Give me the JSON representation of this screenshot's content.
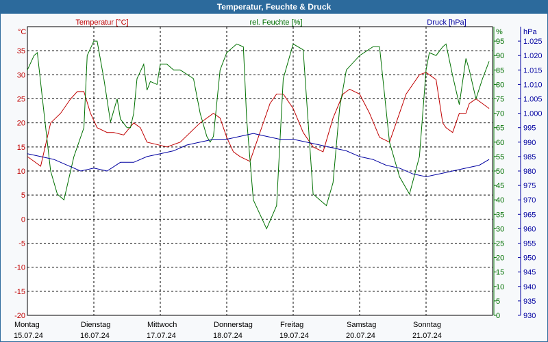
{
  "window": {
    "title": "Temperatur, Feuchte & Druck"
  },
  "axis_labels": {
    "temp_unit": "°C",
    "hum_unit": "%",
    "press_unit": "hPa",
    "temp_series": "Temperatur [°C]",
    "hum_series": "rel. Feuchte [%]",
    "press_series": "Druck [hPa]"
  },
  "colors": {
    "temperature": "#c00000",
    "humidity": "#007000",
    "pressure": "#0000a0",
    "frame": "#2c6a9c"
  },
  "chart_data": {
    "type": "line",
    "title": "Temperatur, Feuchte & Druck",
    "grid": true,
    "x_range": [
      0,
      7
    ],
    "x_ticks": [
      {
        "day": "Montag",
        "date": "15.07.24"
      },
      {
        "day": "Dienstag",
        "date": "16.07.24"
      },
      {
        "day": "Mittwoch",
        "date": "17.07.24"
      },
      {
        "day": "Donnerstag",
        "date": "18.07.24"
      },
      {
        "day": "Freitag",
        "date": "19.07.24"
      },
      {
        "day": "Samstag",
        "date": "20.07.24"
      },
      {
        "day": "Sonntag",
        "date": "21.07.24"
      }
    ],
    "axes": {
      "temperature": {
        "label": "°C",
        "range": [
          -20,
          40
        ],
        "ticks": [
          "35",
          "30",
          "25",
          "20",
          "15",
          "10",
          "5",
          "0",
          "-5",
          "-10",
          "-15",
          "-20"
        ]
      },
      "humidity": {
        "label": "%",
        "range": [
          0,
          100
        ],
        "ticks": [
          "95",
          "90",
          "85",
          "80",
          "75",
          "70",
          "65",
          "60",
          "55",
          "50",
          "45",
          "40",
          "35",
          "30",
          "25",
          "20",
          "15",
          "10",
          "5",
          "0"
        ]
      },
      "pressure": {
        "label": "hPa",
        "range": [
          930,
          1030
        ],
        "ticks": [
          "1.025",
          "1.020",
          "1.015",
          "1.010",
          "1.005",
          "1.000",
          "995",
          "990",
          "985",
          "980",
          "975",
          "970",
          "965",
          "960",
          "955",
          "950",
          "945",
          "940",
          "935",
          "930"
        ]
      }
    },
    "series": [
      {
        "name": "Temperatur [°C]",
        "axis": "temperature",
        "x": [
          0,
          0.1,
          0.2,
          0.35,
          0.5,
          0.65,
          0.75,
          0.85,
          0.95,
          1.05,
          1.2,
          1.3,
          1.45,
          1.6,
          1.7,
          1.8,
          1.95,
          2.1,
          2.3,
          2.45,
          2.6,
          2.8,
          2.9,
          3.0,
          3.1,
          3.2,
          3.35,
          3.5,
          3.65,
          3.75,
          3.85,
          4.0,
          4.15,
          4.3,
          4.45,
          4.6,
          4.75,
          4.85,
          5.0,
          5.15,
          5.3,
          5.45,
          5.6,
          5.7,
          5.8,
          5.9,
          6.0,
          6.05,
          6.15,
          6.25,
          6.3,
          6.4,
          6.5,
          6.6,
          6.65,
          6.75,
          6.85,
          6.95
        ],
        "values": [
          13,
          12,
          11,
          20,
          22,
          25,
          26.5,
          26.5,
          22,
          19,
          18,
          18,
          17.5,
          20,
          19,
          16,
          15.5,
          15,
          16,
          18,
          20,
          22,
          21,
          17,
          14,
          13,
          12,
          18,
          24,
          26,
          26,
          23,
          18,
          15,
          14,
          21,
          26,
          27,
          26,
          22,
          17,
          16,
          22,
          26,
          28,
          30,
          30.5,
          30,
          29,
          20,
          19,
          18,
          22,
          22,
          24,
          25,
          24,
          23
        ]
      },
      {
        "name": "rel. Feuchte [%]",
        "axis": "humidity",
        "x": [
          0,
          0.1,
          0.15,
          0.25,
          0.35,
          0.45,
          0.55,
          0.6,
          0.7,
          0.85,
          0.9,
          1.0,
          1.05,
          1.15,
          1.25,
          1.35,
          1.4,
          1.5,
          1.55,
          1.6,
          1.65,
          1.75,
          1.8,
          1.85,
          1.95,
          2.0,
          2.1,
          2.2,
          2.3,
          2.5,
          2.6,
          2.7,
          2.75,
          2.8,
          2.9,
          3.0,
          3.15,
          3.25,
          3.3,
          3.4,
          3.6,
          3.75,
          3.85,
          4.0,
          4.15,
          4.3,
          4.5,
          4.6,
          4.7,
          4.8,
          5.0,
          5.2,
          5.3,
          5.45,
          5.6,
          5.75,
          5.9,
          6.0,
          6.05,
          6.15,
          6.25,
          6.3,
          6.4,
          6.5,
          6.6,
          6.65,
          6.75,
          6.85,
          6.95
        ],
        "values": [
          85,
          90,
          91,
          70,
          50,
          42,
          40,
          45,
          55,
          65,
          90,
          95,
          95,
          82,
          67,
          75,
          68,
          65,
          65,
          70,
          82,
          87,
          78,
          81,
          80,
          87,
          87,
          85,
          85,
          82,
          70,
          62,
          60,
          62,
          85,
          91,
          94,
          93,
          68,
          40,
          30,
          38,
          82,
          94,
          92,
          42,
          38,
          46,
          72,
          85,
          90,
          93,
          93,
          60,
          48,
          42,
          55,
          85,
          91,
          90,
          93,
          94,
          83,
          73,
          89,
          85,
          75,
          82,
          88
        ]
      },
      {
        "name": "Druck [hPa]",
        "axis": "pressure",
        "x": [
          0,
          0.2,
          0.4,
          0.6,
          0.8,
          1.0,
          1.2,
          1.4,
          1.5,
          1.6,
          1.8,
          2.0,
          2.2,
          2.4,
          2.6,
          2.8,
          3.0,
          3.2,
          3.4,
          3.6,
          3.8,
          4.0,
          4.2,
          4.4,
          4.6,
          4.8,
          5.0,
          5.2,
          5.4,
          5.6,
          5.8,
          6.0,
          6.2,
          6.4,
          6.6,
          6.8,
          6.95
        ],
        "values": [
          986,
          985,
          984,
          982,
          980,
          981,
          980,
          983,
          983,
          983,
          985,
          986,
          987,
          989,
          990,
          991,
          991,
          992,
          993,
          992,
          991,
          991,
          990,
          989,
          988,
          987,
          985,
          984,
          982,
          981,
          979,
          978,
          979,
          980,
          981,
          982,
          984
        ]
      }
    ]
  }
}
